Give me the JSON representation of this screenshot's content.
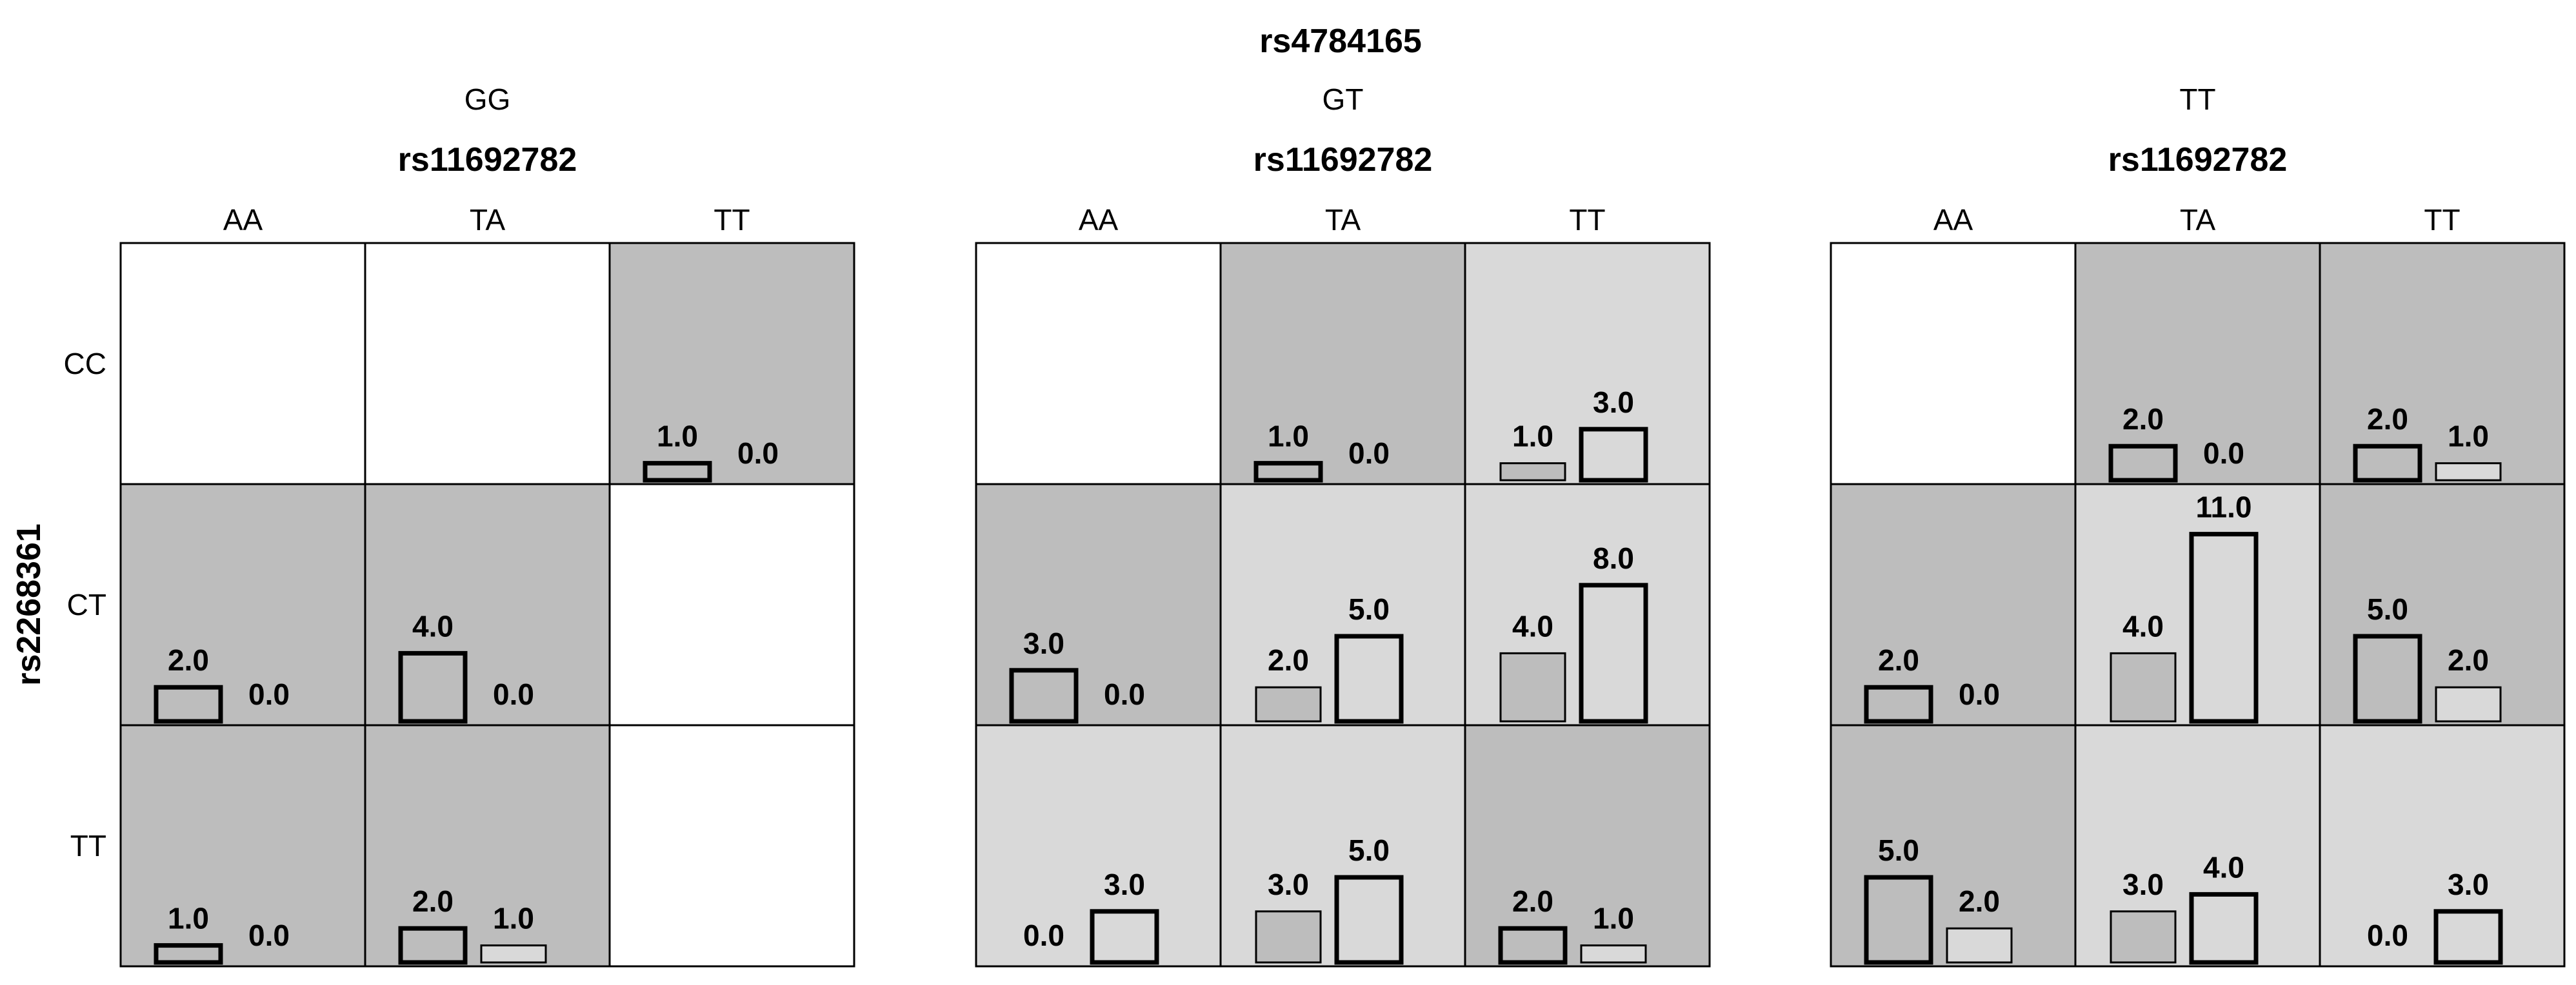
{
  "chart_data": {
    "type": "bar",
    "title": "rs4784165",
    "row_variable": "rs2268361",
    "column_variable": "rs11692782",
    "row_levels": [
      "CC",
      "CT",
      "TT"
    ],
    "column_levels": [
      "AA",
      "TA",
      "TT"
    ],
    "value_range": [
      0,
      11
    ],
    "colors": {
      "shade_dark": "#bdbdbd",
      "shade_light": "#d9d9d9",
      "empty": "#ffffff",
      "border": "#000000"
    },
    "panels": [
      {
        "level": "GG",
        "cells": [
          [
            null,
            null,
            {
              "values": [
                1.0,
                0.0
              ],
              "labels": [
                "1.0",
                "0.0"
              ],
              "shade": "dark",
              "bold": [
                true,
                true
              ]
            }
          ],
          [
            {
              "values": [
                2.0,
                0.0
              ],
              "labels": [
                "2.0",
                "0.0"
              ],
              "shade": "dark",
              "bold": [
                true,
                true
              ]
            },
            {
              "values": [
                4.0,
                0.0
              ],
              "labels": [
                "4.0",
                "0.0"
              ],
              "shade": "dark",
              "bold": [
                true,
                true
              ]
            },
            null
          ],
          [
            {
              "values": [
                1.0,
                0.0
              ],
              "labels": [
                "1.0",
                "0.0"
              ],
              "shade": "dark",
              "bold": [
                true,
                true
              ]
            },
            {
              "values": [
                2.0,
                1.0
              ],
              "labels": [
                "2.0",
                "1.0"
              ],
              "shade": "dark",
              "bold": [
                true,
                false
              ]
            },
            null
          ]
        ]
      },
      {
        "level": "GT",
        "cells": [
          [
            null,
            {
              "values": [
                1.0,
                0.0
              ],
              "labels": [
                "1.0",
                "0.0"
              ],
              "shade": "dark",
              "bold": [
                true,
                true
              ]
            },
            {
              "values": [
                1.0,
                3.0
              ],
              "labels": [
                "1.0",
                "3.0"
              ],
              "shade": "light",
              "bold": [
                false,
                true
              ]
            }
          ],
          [
            {
              "values": [
                3.0,
                0.0
              ],
              "labels": [
                "3.0",
                "0.0"
              ],
              "shade": "dark",
              "bold": [
                true,
                true
              ]
            },
            {
              "values": [
                2.0,
                5.0
              ],
              "labels": [
                "2.0",
                "5.0"
              ],
              "shade": "light",
              "bold": [
                false,
                true
              ]
            },
            {
              "values": [
                4.0,
                8.0
              ],
              "labels": [
                "4.0",
                "8.0"
              ],
              "shade": "light",
              "bold": [
                false,
                true
              ]
            }
          ],
          [
            {
              "values": [
                0.0,
                3.0
              ],
              "labels": [
                "0.0",
                "3.0"
              ],
              "shade": "light",
              "bold": [
                false,
                true
              ]
            },
            {
              "values": [
                3.0,
                5.0
              ],
              "labels": [
                "3.0",
                "5.0"
              ],
              "shade": "light",
              "bold": [
                false,
                true
              ]
            },
            {
              "values": [
                2.0,
                1.0
              ],
              "labels": [
                "2.0",
                "1.0"
              ],
              "shade": "dark",
              "bold": [
                true,
                false
              ]
            }
          ]
        ]
      },
      {
        "level": "TT",
        "cells": [
          [
            null,
            {
              "values": [
                2.0,
                0.0
              ],
              "labels": [
                "2.0",
                "0.0"
              ],
              "shade": "dark",
              "bold": [
                true,
                true
              ]
            },
            {
              "values": [
                2.0,
                1.0
              ],
              "labels": [
                "2.0",
                "1.0"
              ],
              "shade": "dark",
              "bold": [
                true,
                false
              ]
            }
          ],
          [
            {
              "values": [
                2.0,
                0.0
              ],
              "labels": [
                "2.0",
                "0.0"
              ],
              "shade": "dark",
              "bold": [
                true,
                true
              ]
            },
            {
              "values": [
                4.0,
                11.0
              ],
              "labels": [
                "4.0",
                "11.0"
              ],
              "shade": "light",
              "bold": [
                false,
                true
              ]
            },
            {
              "values": [
                5.0,
                2.0
              ],
              "labels": [
                "5.0",
                "2.0"
              ],
              "shade": "dark",
              "bold": [
                true,
                false
              ]
            }
          ],
          [
            {
              "values": [
                5.0,
                2.0
              ],
              "labels": [
                "5.0",
                "2.0"
              ],
              "shade": "dark",
              "bold": [
                true,
                false
              ]
            },
            {
              "values": [
                3.0,
                4.0
              ],
              "labels": [
                "3.0",
                "4.0"
              ],
              "shade": "light",
              "bold": [
                false,
                true
              ]
            },
            {
              "values": [
                0.0,
                3.0
              ],
              "labels": [
                "0.0",
                "3.0"
              ],
              "shade": "light",
              "bold": [
                false,
                true
              ]
            }
          ]
        ]
      }
    ]
  }
}
